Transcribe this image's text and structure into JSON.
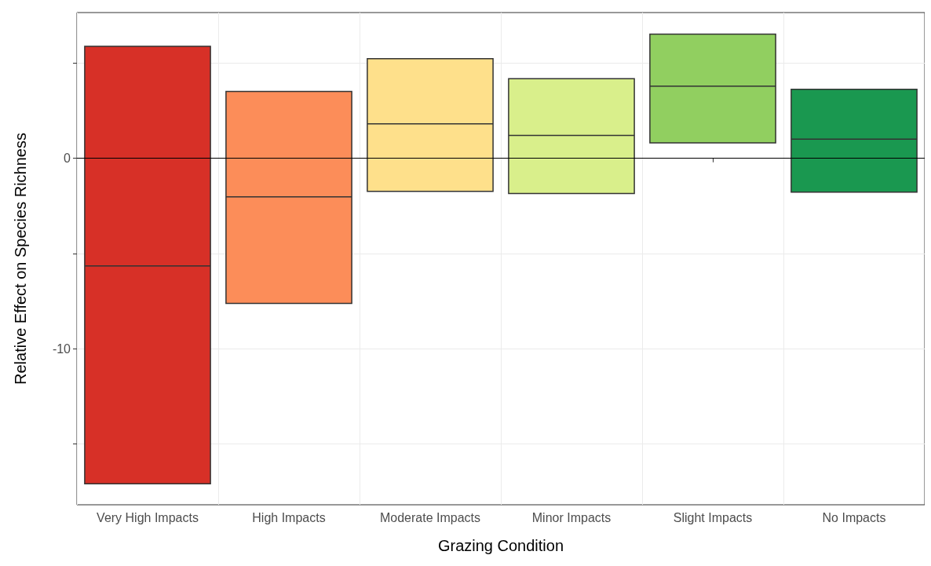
{
  "chart_data": {
    "type": "box",
    "xlabel": "Grazing Condition",
    "ylabel": "Relative Effect on Species Richness",
    "categories": [
      "Very High Impacts",
      "High Impacts",
      "Moderate Impacts",
      "Minor Impacts",
      "Slight Impacts",
      "No Impacts"
    ],
    "boxes": [
      {
        "low": -17.1,
        "q1": -17.1,
        "median": -5.65,
        "q3": 5.89,
        "high": 5.89
      },
      {
        "low": -7.62,
        "q1": -7.62,
        "median": -2.02,
        "q3": 3.51,
        "high": 3.51
      },
      {
        "low": -1.73,
        "q1": -1.73,
        "median": 1.81,
        "q3": 5.24,
        "high": 5.24
      },
      {
        "low": -1.85,
        "q1": -1.85,
        "median": 1.21,
        "q3": 4.19,
        "high": 4.19
      },
      {
        "low": 0.81,
        "q1": 0.81,
        "median": 3.79,
        "q3": 6.53,
        "high": 6.53
      },
      {
        "low": -1.77,
        "q1": -1.77,
        "median": 1.01,
        "q3": 3.63,
        "high": 3.63
      }
    ],
    "colors": [
      "#d73027",
      "#fc8d59",
      "#fee08b",
      "#d9ef8b",
      "#91cf60",
      "#1a9850"
    ],
    "ylim": [
      -18.2,
      7.66
    ],
    "yticks": [
      {
        "value": -15,
        "label": null
      },
      -10,
      {
        "value": -5,
        "label": null
      },
      0,
      {
        "value": 5,
        "label": null
      }
    ],
    "ref_lines": [
      {
        "axis": "y",
        "value": 0,
        "color": "#000000"
      }
    ],
    "grid": true
  }
}
